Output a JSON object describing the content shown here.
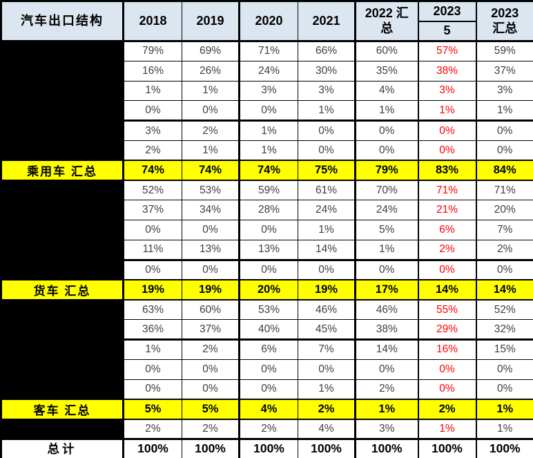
{
  "colors": {
    "header_bg": "#DCE6F1",
    "summary_row_bg": "#FFFF00",
    "accent_red": "#FF0000",
    "redacted_cell": "#000000",
    "border": "#000000"
  },
  "chart_data": {
    "type": "table",
    "title": "汽车出口结构",
    "header_label": "汽车出口结构",
    "red_column_id": "2023-5",
    "columns": [
      {
        "id": "2018",
        "lines": [
          "2018"
        ]
      },
      {
        "id": "2019",
        "lines": [
          "2019"
        ]
      },
      {
        "id": "2020",
        "lines": [
          "2020"
        ]
      },
      {
        "id": "2021",
        "lines": [
          "2021"
        ]
      },
      {
        "id": "2022-sum",
        "lines": [
          "2022 汇",
          "总"
        ]
      },
      {
        "id": "2023-5",
        "lines": [
          "2023",
          "5"
        ],
        "split": true
      },
      {
        "id": "2023-sum",
        "lines": [
          "2023",
          "汇总"
        ]
      }
    ],
    "rows": [
      {
        "type": "data",
        "label": "",
        "values": [
          "79%",
          "69%",
          "71%",
          "66%",
          "60%",
          "57%",
          "59%"
        ]
      },
      {
        "type": "data",
        "label": "",
        "values": [
          "16%",
          "26%",
          "24%",
          "30%",
          "35%",
          "38%",
          "37%"
        ]
      },
      {
        "type": "data",
        "label": "",
        "values": [
          "1%",
          "1%",
          "3%",
          "3%",
          "4%",
          "3%",
          "3%"
        ]
      },
      {
        "type": "data",
        "label": "",
        "thick_bottom": true,
        "values": [
          "0%",
          "0%",
          "0%",
          "1%",
          "1%",
          "1%",
          "1%"
        ]
      },
      {
        "type": "data",
        "label": "",
        "values": [
          "3%",
          "2%",
          "1%",
          "0%",
          "0%",
          "0%",
          "0%"
        ]
      },
      {
        "type": "data",
        "label": "",
        "values": [
          "2%",
          "1%",
          "1%",
          "0%",
          "0%",
          "0%",
          "0%"
        ]
      },
      {
        "type": "summary",
        "label": "乘用车 汇总",
        "values": [
          "74%",
          "74%",
          "74%",
          "75%",
          "79%",
          "83%",
          "84%"
        ]
      },
      {
        "type": "data",
        "label": "",
        "values": [
          "52%",
          "53%",
          "59%",
          "61%",
          "70%",
          "71%",
          "71%"
        ]
      },
      {
        "type": "data",
        "label": "",
        "values": [
          "37%",
          "34%",
          "28%",
          "24%",
          "24%",
          "21%",
          "20%"
        ]
      },
      {
        "type": "data",
        "label": "",
        "values": [
          "0%",
          "0%",
          "0%",
          "1%",
          "5%",
          "6%",
          "7%"
        ]
      },
      {
        "type": "data",
        "label": "",
        "thick_bottom": true,
        "values": [
          "11%",
          "13%",
          "13%",
          "14%",
          "1%",
          "2%",
          "2%"
        ]
      },
      {
        "type": "data",
        "label": "",
        "values": [
          "0%",
          "0%",
          "0%",
          "0%",
          "0%",
          "0%",
          "0%"
        ]
      },
      {
        "type": "summary",
        "label": "货车 汇总",
        "values": [
          "19%",
          "19%",
          "20%",
          "19%",
          "17%",
          "14%",
          "14%"
        ]
      },
      {
        "type": "data",
        "label": "",
        "values": [
          "63%",
          "60%",
          "53%",
          "46%",
          "46%",
          "55%",
          "52%"
        ]
      },
      {
        "type": "data",
        "label": "",
        "thick_bottom": true,
        "values": [
          "36%",
          "37%",
          "40%",
          "45%",
          "38%",
          "29%",
          "32%"
        ]
      },
      {
        "type": "data",
        "label": "",
        "values": [
          "1%",
          "2%",
          "6%",
          "7%",
          "14%",
          "16%",
          "15%"
        ]
      },
      {
        "type": "data",
        "label": "",
        "values": [
          "0%",
          "0%",
          "0%",
          "0%",
          "0%",
          "0%",
          "0%"
        ]
      },
      {
        "type": "data",
        "label": "",
        "values": [
          "0%",
          "0%",
          "0%",
          "1%",
          "2%",
          "0%",
          "0%"
        ]
      },
      {
        "type": "summary",
        "label": "客车 汇总",
        "values": [
          "5%",
          "5%",
          "4%",
          "2%",
          "1%",
          "2%",
          "1%"
        ]
      },
      {
        "type": "data",
        "label": "",
        "values": [
          "2%",
          "2%",
          "2%",
          "4%",
          "3%",
          "1%",
          "1%"
        ]
      },
      {
        "type": "total",
        "label": "总计",
        "values": [
          "100%",
          "100%",
          "100%",
          "100%",
          "100%",
          "100%",
          "100%"
        ]
      }
    ]
  }
}
